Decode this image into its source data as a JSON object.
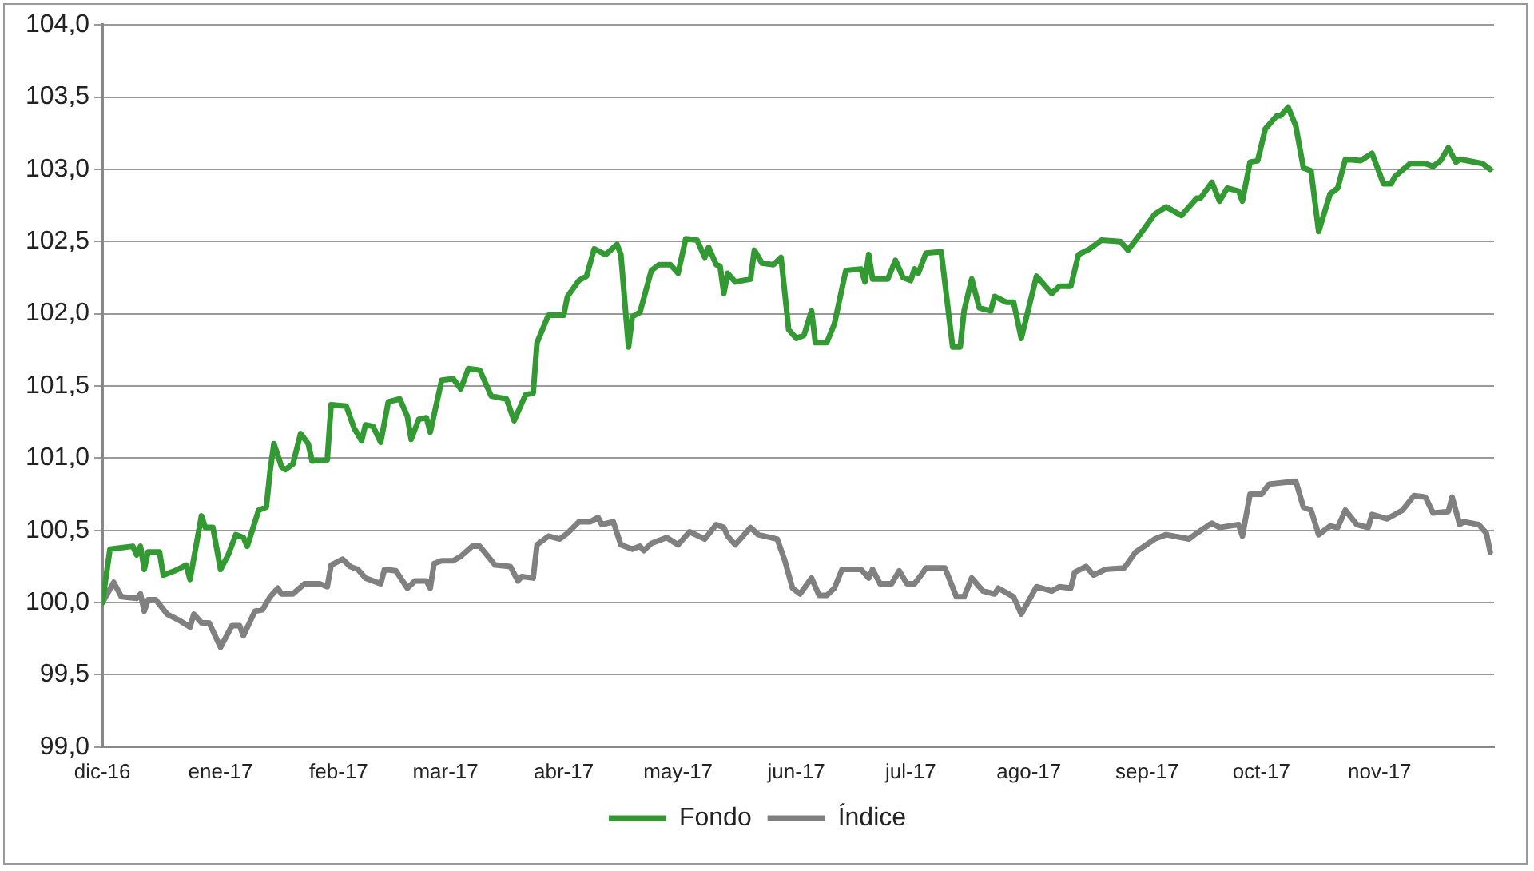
{
  "chart_data": {
    "type": "line",
    "legend": "bottom",
    "grid": "y",
    "line_style": "solid",
    "marker": "none",
    "xlim": [
      "2016-12-01",
      "2017-12-01"
    ],
    "xticks": [
      {
        "value": "2016-12-01",
        "label": "dic-16"
      },
      {
        "value": "2017-01-01",
        "label": "ene-17"
      },
      {
        "value": "2017-02-01",
        "label": "feb-17"
      },
      {
        "value": "2017-03-01",
        "label": "mar-17"
      },
      {
        "value": "2017-04-01",
        "label": "abr-17"
      },
      {
        "value": "2017-05-01",
        "label": "may-17"
      },
      {
        "value": "2017-06-01",
        "label": "jun-17"
      },
      {
        "value": "2017-07-01",
        "label": "jul-17"
      },
      {
        "value": "2017-08-01",
        "label": "ago-17"
      },
      {
        "value": "2017-09-01",
        "label": "sep-17"
      },
      {
        "value": "2017-10-01",
        "label": "oct-17"
      },
      {
        "value": "2017-11-01",
        "label": "nov-17"
      }
    ],
    "ylim": [
      99,
      104
    ],
    "yticks": [
      {
        "value": 99,
        "label": "99,0"
      },
      {
        "value": 99.5,
        "label": "99,5"
      },
      {
        "value": 100,
        "label": "100,0"
      },
      {
        "value": 100.5,
        "label": "100,5"
      },
      {
        "value": 101,
        "label": "101,0"
      },
      {
        "value": 101.5,
        "label": "101,5"
      },
      {
        "value": 102,
        "label": "102,0"
      },
      {
        "value": 102.5,
        "label": "102,5"
      },
      {
        "value": 103,
        "label": "103,0"
      },
      {
        "value": 103.5,
        "label": "103,5"
      },
      {
        "value": 104,
        "label": "104,0"
      }
    ],
    "series": [
      {
        "name": "Fondo",
        "color": "#339933",
        "x": [
          "2016-12-01",
          "2016-12-03",
          "2016-12-09",
          "2016-12-10",
          "2016-12-11",
          "2016-12-12",
          "2016-12-13",
          "2016-12-16",
          "2016-12-17",
          "2016-12-20",
          "2016-12-23",
          "2016-12-24",
          "2016-12-27",
          "2016-12-28",
          "2016-12-30",
          "2017-01-01",
          "2017-01-03",
          "2017-01-05",
          "2017-01-07",
          "2017-01-08",
          "2017-01-11",
          "2017-01-13",
          "2017-01-14",
          "2017-01-15",
          "2017-01-17",
          "2017-01-18",
          "2017-01-20",
          "2017-01-22",
          "2017-01-24",
          "2017-01-25",
          "2017-01-29",
          "2017-01-30",
          "2017-02-03",
          "2017-02-05",
          "2017-02-07",
          "2017-02-08",
          "2017-02-10",
          "2017-02-12",
          "2017-02-14",
          "2017-02-17",
          "2017-02-19",
          "2017-02-20",
          "2017-02-22",
          "2017-02-24",
          "2017-02-25",
          "2017-02-28",
          "2017-03-03",
          "2017-03-05",
          "2017-03-07",
          "2017-03-10",
          "2017-03-13",
          "2017-03-17",
          "2017-03-19",
          "2017-03-22",
          "2017-03-24",
          "2017-03-25",
          "2017-03-28",
          "2017-04-01",
          "2017-04-02",
          "2017-04-05",
          "2017-04-07",
          "2017-04-09",
          "2017-04-12",
          "2017-04-15",
          "2017-04-16",
          "2017-04-18",
          "2017-04-19",
          "2017-04-21",
          "2017-04-24",
          "2017-04-26",
          "2017-04-29",
          "2017-05-01",
          "2017-05-03",
          "2017-05-06",
          "2017-05-08",
          "2017-05-09",
          "2017-05-11",
          "2017-05-12",
          "2017-05-13",
          "2017-05-14",
          "2017-05-16",
          "2017-05-20",
          "2017-05-21",
          "2017-05-23",
          "2017-05-26",
          "2017-05-28",
          "2017-05-30",
          "2017-06-01",
          "2017-06-03",
          "2017-06-05",
          "2017-06-06",
          "2017-06-09",
          "2017-06-11",
          "2017-06-14",
          "2017-06-18",
          "2017-06-19",
          "2017-06-20",
          "2017-06-21",
          "2017-06-25",
          "2017-06-27",
          "2017-06-29",
          "2017-07-01",
          "2017-07-02",
          "2017-07-03",
          "2017-07-05",
          "2017-07-09",
          "2017-07-12",
          "2017-07-14",
          "2017-07-15",
          "2017-07-17",
          "2017-07-19",
          "2017-07-22",
          "2017-07-23",
          "2017-07-26",
          "2017-07-28",
          "2017-07-30",
          "2017-08-03",
          "2017-08-07",
          "2017-08-09",
          "2017-08-12",
          "2017-08-14",
          "2017-08-17",
          "2017-08-20",
          "2017-08-25",
          "2017-08-27",
          "2017-08-31",
          "2017-09-03",
          "2017-09-06",
          "2017-09-10",
          "2017-09-14",
          "2017-09-15",
          "2017-09-18",
          "2017-09-20",
          "2017-09-22",
          "2017-09-25",
          "2017-09-26",
          "2017-09-28",
          "2017-09-30",
          "2017-10-02",
          "2017-10-05",
          "2017-10-06",
          "2017-10-08",
          "2017-10-10",
          "2017-10-12",
          "2017-10-14",
          "2017-10-16",
          "2017-10-19",
          "2017-10-21",
          "2017-10-23",
          "2017-10-27",
          "2017-10-30",
          "2017-11-02",
          "2017-11-04",
          "2017-11-05",
          "2017-11-09",
          "2017-11-13",
          "2017-11-15",
          "2017-11-17",
          "2017-11-19",
          "2017-11-21",
          "2017-11-22",
          "2017-11-28",
          "2017-11-30"
        ],
        "values": [
          100.0,
          100.37,
          100.39,
          100.33,
          100.39,
          100.23,
          100.35,
          100.35,
          100.19,
          100.22,
          100.26,
          100.16,
          100.6,
          100.52,
          100.52,
          100.23,
          100.33,
          100.47,
          100.45,
          100.39,
          100.64,
          100.66,
          100.91,
          101.1,
          100.94,
          100.92,
          100.96,
          101.17,
          101.1,
          100.98,
          100.99,
          101.37,
          101.36,
          101.21,
          101.12,
          101.23,
          101.22,
          101.11,
          101.39,
          101.41,
          101.29,
          101.13,
          101.27,
          101.28,
          101.18,
          101.54,
          101.55,
          101.48,
          101.62,
          101.61,
          101.43,
          101.41,
          101.26,
          101.44,
          101.45,
          101.8,
          101.99,
          101.99,
          102.12,
          102.23,
          102.26,
          102.45,
          102.41,
          102.48,
          102.41,
          101.77,
          101.98,
          102.01,
          102.3,
          102.34,
          102.34,
          102.28,
          102.52,
          102.51,
          102.39,
          102.46,
          102.34,
          102.33,
          102.14,
          102.28,
          102.22,
          102.24,
          102.44,
          102.35,
          102.34,
          102.39,
          101.89,
          101.83,
          101.85,
          102.02,
          101.8,
          101.8,
          101.93,
          102.3,
          102.31,
          102.22,
          102.41,
          102.24,
          102.24,
          102.37,
          102.25,
          102.23,
          102.31,
          102.28,
          102.42,
          102.43,
          101.77,
          101.77,
          102.02,
          102.24,
          102.04,
          102.02,
          102.12,
          102.08,
          102.08,
          101.83,
          102.26,
          102.14,
          102.19,
          102.19,
          102.41,
          102.45,
          102.51,
          102.5,
          102.44,
          102.58,
          102.69,
          102.74,
          102.68,
          102.8,
          102.8,
          102.91,
          102.78,
          102.87,
          102.85,
          102.78,
          103.05,
          103.06,
          103.28,
          103.37,
          103.37,
          103.43,
          103.3,
          103.01,
          102.99,
          102.57,
          102.83,
          102.87,
          103.07,
          103.06,
          103.11,
          102.9,
          102.9,
          102.95,
          103.04,
          103.04,
          103.02,
          103.06,
          103.15,
          103.05,
          103.07,
          103.04,
          103.0
        ]
      },
      {
        "name": "Índice",
        "color": "#808080",
        "x": [
          "2016-12-01",
          "2016-12-04",
          "2016-12-06",
          "2016-12-10",
          "2016-12-11",
          "2016-12-12",
          "2016-12-13",
          "2016-12-15",
          "2016-12-18",
          "2016-12-21",
          "2016-12-24",
          "2016-12-25",
          "2016-12-27",
          "2016-12-29",
          "2017-01-01",
          "2017-01-04",
          "2017-01-06",
          "2017-01-07",
          "2017-01-10",
          "2017-01-12",
          "2017-01-14",
          "2017-01-16",
          "2017-01-17",
          "2017-01-20",
          "2017-01-23",
          "2017-01-27",
          "2017-01-29",
          "2017-01-30",
          "2017-02-02",
          "2017-02-04",
          "2017-02-06",
          "2017-02-08",
          "2017-02-12",
          "2017-02-13",
          "2017-02-16",
          "2017-02-19",
          "2017-02-21",
          "2017-02-24",
          "2017-02-25",
          "2017-02-26",
          "2017-02-28",
          "2017-03-03",
          "2017-03-05",
          "2017-03-08",
          "2017-03-10",
          "2017-03-14",
          "2017-03-18",
          "2017-03-20",
          "2017-03-21",
          "2017-03-24",
          "2017-03-25",
          "2017-03-28",
          "2017-03-31",
          "2017-04-02",
          "2017-04-05",
          "2017-04-08",
          "2017-04-10",
          "2017-04-11",
          "2017-04-14",
          "2017-04-16",
          "2017-04-19",
          "2017-04-21",
          "2017-04-22",
          "2017-04-24",
          "2017-04-28",
          "2017-05-01",
          "2017-05-04",
          "2017-05-08",
          "2017-05-11",
          "2017-05-13",
          "2017-05-14",
          "2017-05-16",
          "2017-05-18",
          "2017-05-20",
          "2017-05-22",
          "2017-05-27",
          "2017-05-29",
          "2017-05-31",
          "2017-06-02",
          "2017-06-05",
          "2017-06-07",
          "2017-06-09",
          "2017-06-11",
          "2017-06-13",
          "2017-06-18",
          "2017-06-20",
          "2017-06-21",
          "2017-06-23",
          "2017-06-26",
          "2017-06-28",
          "2017-06-30",
          "2017-07-02",
          "2017-07-04",
          "2017-07-05",
          "2017-07-10",
          "2017-07-13",
          "2017-07-15",
          "2017-07-17",
          "2017-07-20",
          "2017-07-23",
          "2017-07-24",
          "2017-07-28",
          "2017-07-30",
          "2017-08-03",
          "2017-08-07",
          "2017-08-09",
          "2017-08-12",
          "2017-08-13",
          "2017-08-16",
          "2017-08-18",
          "2017-08-21",
          "2017-08-26",
          "2017-08-29",
          "2017-09-03",
          "2017-09-06",
          "2017-09-12",
          "2017-09-14",
          "2017-09-18",
          "2017-09-20",
          "2017-09-25",
          "2017-09-26",
          "2017-09-28",
          "2017-10-01",
          "2017-10-03",
          "2017-10-10",
          "2017-10-12",
          "2017-10-14",
          "2017-10-16",
          "2017-10-19",
          "2017-10-21",
          "2017-10-23",
          "2017-10-26",
          "2017-10-29",
          "2017-10-30",
          "2017-11-03",
          "2017-11-07",
          "2017-11-10",
          "2017-11-13",
          "2017-11-15",
          "2017-11-19",
          "2017-11-20",
          "2017-11-22",
          "2017-11-23",
          "2017-11-27",
          "2017-11-29",
          "2017-11-30"
        ],
        "values": [
          100.0,
          100.14,
          100.04,
          100.03,
          100.06,
          99.94,
          100.02,
          100.02,
          99.92,
          99.88,
          99.83,
          99.92,
          99.86,
          99.86,
          99.69,
          99.84,
          99.84,
          99.77,
          99.94,
          99.95,
          100.04,
          100.1,
          100.06,
          100.06,
          100.13,
          100.13,
          100.11,
          100.26,
          100.3,
          100.25,
          100.23,
          100.17,
          100.13,
          100.23,
          100.22,
          100.1,
          100.15,
          100.15,
          100.1,
          100.27,
          100.29,
          100.29,
          100.32,
          100.39,
          100.39,
          100.26,
          100.25,
          100.15,
          100.18,
          100.17,
          100.4,
          100.46,
          100.44,
          100.48,
          100.56,
          100.56,
          100.59,
          100.54,
          100.56,
          100.4,
          100.37,
          100.39,
          100.36,
          100.41,
          100.45,
          100.4,
          100.49,
          100.44,
          100.54,
          100.52,
          100.46,
          100.4,
          100.46,
          100.52,
          100.47,
          100.44,
          100.29,
          100.1,
          100.06,
          100.17,
          100.05,
          100.05,
          100.1,
          100.23,
          100.23,
          100.17,
          100.23,
          100.13,
          100.13,
          100.22,
          100.13,
          100.13,
          100.2,
          100.24,
          100.24,
          100.04,
          100.04,
          100.17,
          100.08,
          100.06,
          100.1,
          100.04,
          99.92,
          100.11,
          100.08,
          100.11,
          100.1,
          100.21,
          100.25,
          100.19,
          100.23,
          100.24,
          100.35,
          100.44,
          100.47,
          100.44,
          100.48,
          100.55,
          100.52,
          100.54,
          100.46,
          100.75,
          100.75,
          100.82,
          100.84,
          100.66,
          100.64,
          100.47,
          100.53,
          100.52,
          100.64,
          100.54,
          100.52,
          100.61,
          100.58,
          100.64,
          100.74,
          100.73,
          100.62,
          100.63,
          100.73,
          100.54,
          100.56,
          100.54,
          100.48,
          100.35
        ]
      }
    ]
  }
}
